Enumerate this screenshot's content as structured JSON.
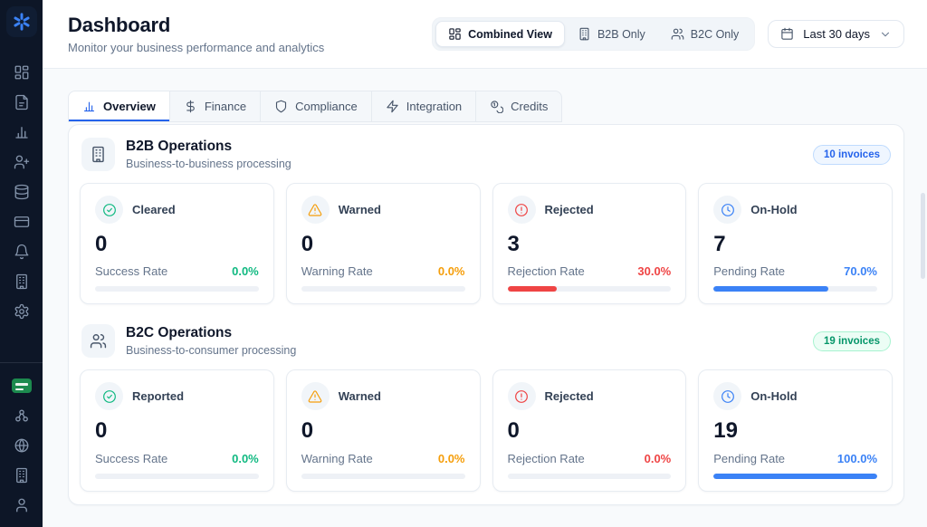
{
  "page": {
    "title": "Dashboard",
    "subtitle": "Monitor your business performance and analytics"
  },
  "header": {
    "date_range_label": "Last 30 days",
    "view_toggle": [
      {
        "name": "combined-view",
        "label": "Combined View",
        "icon": "dashboard-grid",
        "active": true
      },
      {
        "name": "b2b-only",
        "label": "B2B Only",
        "icon": "building",
        "active": false
      },
      {
        "name": "b2c-only",
        "label": "B2C Only",
        "icon": "users",
        "active": false
      }
    ]
  },
  "tabs": [
    {
      "name": "overview",
      "label": "Overview",
      "icon": "bar-chart",
      "active": true
    },
    {
      "name": "finance",
      "label": "Finance",
      "icon": "dollar",
      "active": false
    },
    {
      "name": "compliance",
      "label": "Compliance",
      "icon": "shield",
      "active": false
    },
    {
      "name": "integration",
      "label": "Integration",
      "icon": "zap",
      "active": false
    },
    {
      "name": "credits",
      "label": "Credits",
      "icon": "coins",
      "active": false
    }
  ],
  "colors": {
    "accent_blue": "#2563eb",
    "success_green": "#10b981",
    "warning_orange": "#f59e0b",
    "danger_red": "#ef4444",
    "info_blue": "#3b82f6",
    "sidebar_bg": "#0d1627"
  },
  "sections": [
    {
      "name": "b2b-operations",
      "title": "B2B Operations",
      "subtitle": "Business-to-business processing",
      "icon": "building",
      "badge": {
        "label": "10 invoices",
        "text": "#2563eb",
        "bg": "#eff6ff",
        "border": "#bfdbfe"
      },
      "cards": [
        {
          "name": "cleared",
          "label": "Cleared",
          "icon": "check-circle",
          "value": "0",
          "rate_label": "Success Rate",
          "rate": "0.0%",
          "progress": 0,
          "accent": "#10b981"
        },
        {
          "name": "warned",
          "label": "Warned",
          "icon": "alert-triangle",
          "value": "0",
          "rate_label": "Warning Rate",
          "rate": "0.0%",
          "progress": 0,
          "accent": "#f59e0b"
        },
        {
          "name": "rejected",
          "label": "Rejected",
          "icon": "alert-circle",
          "value": "3",
          "rate_label": "Rejection Rate",
          "rate": "30.0%",
          "progress": 30,
          "accent": "#ef4444"
        },
        {
          "name": "on-hold",
          "label": "On-Hold",
          "icon": "clock",
          "value": "7",
          "rate_label": "Pending Rate",
          "rate": "70.0%",
          "progress": 70,
          "accent": "#3b82f6"
        }
      ]
    },
    {
      "name": "b2c-operations",
      "title": "B2C Operations",
      "subtitle": "Business-to-consumer processing",
      "icon": "users",
      "badge": {
        "label": "19 invoices",
        "text": "#059669",
        "bg": "#ecfdf5",
        "border": "#a7f3d0"
      },
      "cards": [
        {
          "name": "reported",
          "label": "Reported",
          "icon": "check-circle",
          "value": "0",
          "rate_label": "Success Rate",
          "rate": "0.0%",
          "progress": 0,
          "accent": "#10b981"
        },
        {
          "name": "warned",
          "label": "Warned",
          "icon": "alert-triangle",
          "value": "0",
          "rate_label": "Warning Rate",
          "rate": "0.0%",
          "progress": 0,
          "accent": "#f59e0b"
        },
        {
          "name": "rejected",
          "label": "Rejected",
          "icon": "alert-circle",
          "value": "0",
          "rate_label": "Rejection Rate",
          "rate": "0.0%",
          "progress": 0,
          "accent": "#ef4444"
        },
        {
          "name": "on-hold",
          "label": "On-Hold",
          "icon": "clock",
          "value": "19",
          "rate_label": "Pending Rate",
          "rate": "100.0%",
          "progress": 100,
          "accent": "#3b82f6"
        }
      ]
    }
  ],
  "sidebar": {
    "top": [
      {
        "name": "dashboard",
        "icon": "dashboard-grid"
      },
      {
        "name": "documents",
        "icon": "document"
      },
      {
        "name": "analytics",
        "icon": "bar-chart"
      },
      {
        "name": "add-user",
        "icon": "user-plus"
      },
      {
        "name": "database",
        "icon": "database"
      },
      {
        "name": "billing",
        "icon": "credit-card"
      },
      {
        "name": "notifications",
        "icon": "bell"
      },
      {
        "name": "organization",
        "icon": "building"
      },
      {
        "name": "settings",
        "icon": "settings"
      }
    ],
    "bottom": [
      {
        "name": "locale-flag",
        "icon": "saudi-flag"
      },
      {
        "name": "network",
        "icon": "network"
      },
      {
        "name": "globe",
        "icon": "globe"
      },
      {
        "name": "company",
        "icon": "building"
      },
      {
        "name": "profile",
        "icon": "user"
      }
    ]
  }
}
